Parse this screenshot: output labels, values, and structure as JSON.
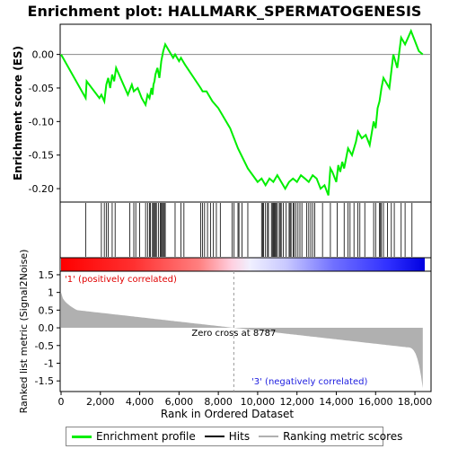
{
  "chart_data": {
    "type": "line",
    "title": "Enrichment plot: HALLMARK_SPERMATOGENESIS",
    "ylabel": "Enrichment score (ES)",
    "xlabel": "Rank in Ordered Dataset",
    "ylabel_bottom": "Ranked list metric (Signal2Noise)",
    "xlim": [
      0,
      18500
    ],
    "ylim": [
      -0.22,
      0.045
    ],
    "ylim_bottom": [
      -1.8,
      1.6
    ],
    "x_ticks": [
      0,
      2000,
      4000,
      6000,
      8000,
      10000,
      12000,
      14000,
      16000,
      18000
    ],
    "x_tick_labels": [
      "0",
      "2,000",
      "4,000",
      "6,000",
      "8,000",
      "10,000",
      "12,000",
      "14,000",
      "16,000",
      "18,000"
    ],
    "y_ticks": [
      0.0,
      -0.05,
      -0.1,
      -0.15,
      -0.2
    ],
    "y_tick_labels": [
      "0.00",
      "-0.05",
      "-0.10",
      "-0.15",
      "-0.20"
    ],
    "y_ticks_bottom": [
      1.5,
      1.0,
      0.5,
      0.0,
      -0.5,
      -1.0,
      -1.5
    ],
    "y_tick_labels_bottom": [
      "1.5",
      "1",
      "0.5",
      "0.0",
      "-0.5",
      "-1",
      "-1.5"
    ],
    "es_profile": {
      "x": [
        0,
        1250,
        1300,
        1950,
        2050,
        2200,
        2300,
        2400,
        2500,
        2600,
        2700,
        2800,
        3400,
        3600,
        3700,
        3900,
        4100,
        4300,
        4400,
        4500,
        4600,
        4650,
        4700,
        4750,
        4800,
        4900,
        5000,
        5100,
        5200,
        5300,
        5700,
        5800,
        6000,
        6100,
        6200,
        6300,
        7100,
        7200,
        7400,
        7500,
        7700,
        8000,
        8300,
        8600,
        9000,
        9500,
        10000,
        10200,
        10400,
        10600,
        10800,
        11000,
        11200,
        11400,
        11600,
        11800,
        12000,
        12200,
        12400,
        12600,
        12800,
        13000,
        13200,
        13400,
        13600,
        13700,
        13800,
        14000,
        14100,
        14200,
        14300,
        14400,
        14500,
        14600,
        14800,
        15000,
        15100,
        15300,
        15500,
        15700,
        15900,
        16000,
        16100,
        16200,
        16300,
        16400,
        16500,
        16700,
        16900,
        17100,
        17300,
        17500,
        17800,
        18000,
        18200,
        18400
      ],
      "y": [
        0.0,
        -0.065,
        -0.04,
        -0.065,
        -0.06,
        -0.07,
        -0.045,
        -0.035,
        -0.05,
        -0.03,
        -0.04,
        -0.02,
        -0.06,
        -0.045,
        -0.055,
        -0.05,
        -0.065,
        -0.075,
        -0.06,
        -0.065,
        -0.05,
        -0.06,
        -0.045,
        -0.04,
        -0.03,
        -0.02,
        -0.035,
        -0.01,
        0.005,
        0.015,
        -0.005,
        0.0,
        -0.01,
        -0.005,
        -0.01,
        -0.015,
        -0.05,
        -0.055,
        -0.055,
        -0.06,
        -0.07,
        -0.08,
        -0.095,
        -0.11,
        -0.14,
        -0.17,
        -0.19,
        -0.185,
        -0.195,
        -0.185,
        -0.19,
        -0.18,
        -0.19,
        -0.2,
        -0.19,
        -0.185,
        -0.19,
        -0.18,
        -0.185,
        -0.19,
        -0.18,
        -0.185,
        -0.2,
        -0.195,
        -0.21,
        -0.17,
        -0.175,
        -0.19,
        -0.165,
        -0.175,
        -0.16,
        -0.17,
        -0.155,
        -0.14,
        -0.15,
        -0.13,
        -0.115,
        -0.125,
        -0.12,
        -0.135,
        -0.1,
        -0.11,
        -0.08,
        -0.07,
        -0.05,
        -0.035,
        -0.04,
        -0.05,
        0.0,
        -0.02,
        0.025,
        0.015,
        0.035,
        0.02,
        0.005,
        0.0
      ]
    },
    "zero_cross": 8787,
    "zero_cross_label": "Zero cross at 8787",
    "positive_label": "'1' (positively correlated)",
    "negative_label": "'3' (negatively correlated)",
    "hits": [
      1250,
      2050,
      2200,
      2300,
      2400,
      2600,
      2750,
      3500,
      3700,
      3800,
      4000,
      4300,
      4400,
      4500,
      4550,
      4650,
      4700,
      4750,
      4800,
      4850,
      4950,
      5050,
      5100,
      5150,
      5200,
      5250,
      5300,
      5800,
      6100,
      6250,
      7100,
      7200,
      7300,
      7450,
      7600,
      7750,
      7900,
      8100,
      8700,
      8800,
      9000,
      9050,
      9200,
      9500,
      10200,
      10250,
      10300,
      10400,
      10500,
      10550,
      10700,
      10750,
      10800,
      10850,
      10900,
      10950,
      11000,
      11100,
      11150,
      11200,
      11300,
      11450,
      11600,
      11650,
      11700,
      11800,
      11850,
      11950,
      12050,
      12150,
      12250,
      12500,
      12600,
      12700,
      12800,
      12900,
      13300,
      13700,
      14050,
      14400,
      14600,
      14700,
      14900,
      15100,
      15200,
      15450,
      15900,
      16000,
      16200,
      16250,
      16300,
      16400,
      16600,
      16800,
      16950,
      17300,
      17500,
      17850
    ],
    "colors": {
      "profile": "#00ee00",
      "hits": "#000000",
      "metric": "#b0b0b0",
      "positive": "#e00000",
      "negative": "#2020e0"
    },
    "legend": [
      "Enrichment profile",
      "Hits",
      "Ranking metric scores"
    ],
    "legend_placement": "bottom"
  }
}
